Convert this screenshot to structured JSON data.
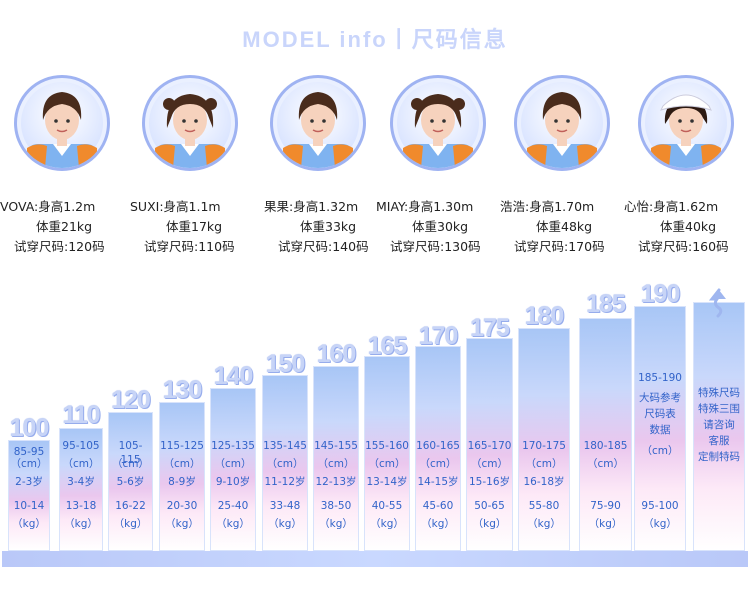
{
  "header": {
    "title": "MODEL  info丨尺码信息"
  },
  "models": [
    {
      "name_line": "VOVA:身高1.2m",
      "weight_line": "体重21kg",
      "size_line": "试穿尺码:120码",
      "hair": "short-boy",
      "avatar_icon": "child-portrait-icon"
    },
    {
      "name_line": "SUXI:身高1.1m",
      "weight_line": "体重17kg",
      "size_line": "试穿尺码:110码",
      "hair": "girl",
      "avatar_icon": "child-portrait-icon"
    },
    {
      "name_line": "果果:身高1.32m",
      "weight_line": "体重33kg",
      "size_line": "试穿尺码:140码",
      "hair": "short-boy",
      "avatar_icon": "child-portrait-icon"
    },
    {
      "name_line": "MIAY:身高1.30m",
      "weight_line": "体重30kg",
      "size_line": "试穿尺码:130码",
      "hair": "girl",
      "avatar_icon": "child-portrait-icon"
    },
    {
      "name_line": "浩浩:身高1.70m",
      "weight_line": "体重48kg",
      "size_line": "试穿尺码:170码",
      "hair": "short-boy",
      "avatar_icon": "child-portrait-icon"
    },
    {
      "name_line": "心怡:身高1.62m",
      "weight_line": "体重40kg",
      "size_line": "试穿尺码:160码",
      "hair": "cap-girl",
      "avatar_icon": "child-portrait-icon"
    }
  ],
  "size_chart": [
    {
      "size": "100",
      "height": "85-95",
      "unit1": "（cm）",
      "age": "2-3岁",
      "weight": "10-14",
      "unit2": "（kg）"
    },
    {
      "size": "110",
      "height": "95-105",
      "unit1": "（cm）",
      "age": "3-4岁",
      "weight": "13-18",
      "unit2": "（kg）"
    },
    {
      "size": "120",
      "height": "105-115",
      "unit1": "（cm）",
      "age": "5-6岁",
      "weight": "16-22",
      "unit2": "（kg）"
    },
    {
      "size": "130",
      "height": "115-125",
      "unit1": "（cm）",
      "age": "8-9岁",
      "weight": "20-30",
      "unit2": "（kg）"
    },
    {
      "size": "140",
      "height": "125-135",
      "unit1": "（cm）",
      "age": "9-10岁",
      "weight": "25-40",
      "unit2": "（kg）"
    },
    {
      "size": "150",
      "height": "135-145",
      "unit1": "（cm）",
      "age": "11-12岁",
      "weight": "33-48",
      "unit2": "（kg）"
    },
    {
      "size": "160",
      "height": "145-155",
      "unit1": "（cm）",
      "age": "12-13岁",
      "weight": "38-50",
      "unit2": "（kg）"
    },
    {
      "size": "165",
      "height": "155-160",
      "unit1": "（cm）",
      "age": "13-14岁",
      "weight": "40-55",
      "unit2": "（kg）"
    },
    {
      "size": "170",
      "height": "160-165",
      "unit1": "（cm）",
      "age": "14-15岁",
      "weight": "45-60",
      "unit2": "（kg）"
    },
    {
      "size": "175",
      "height": "165-170",
      "unit1": "（cm）",
      "age": "15-16岁",
      "weight": "50-65",
      "unit2": "（kg）"
    },
    {
      "size": "180",
      "height": "170-175",
      "unit1": "（cm）",
      "age": "16-18岁",
      "weight": "55-80",
      "unit2": "（kg）"
    },
    {
      "size": "185",
      "height": "180-185",
      "unit1": "（cm）",
      "age": "",
      "weight": "75-90",
      "unit2": "（kg）"
    },
    {
      "size": "190",
      "height": "185-190",
      "unit1": "（cm）",
      "age": "",
      "weight": "95-100",
      "unit2": "（kg）",
      "note_lines": [
        "大码参考",
        "尺码表",
        "数据"
      ]
    },
    {
      "size": "",
      "height": "",
      "unit1": "",
      "age": "",
      "weight": "",
      "unit2": "",
      "note_lines": [
        "特殊尺码",
        "特殊三围",
        "请咨询",
        "客服",
        "定制特码"
      ],
      "top_icon": "up-arrow-icon"
    }
  ],
  "colors": {
    "accent": "#3263c9",
    "big_number": "#c7d4f7",
    "avatar_border": "#9fb3f2"
  }
}
